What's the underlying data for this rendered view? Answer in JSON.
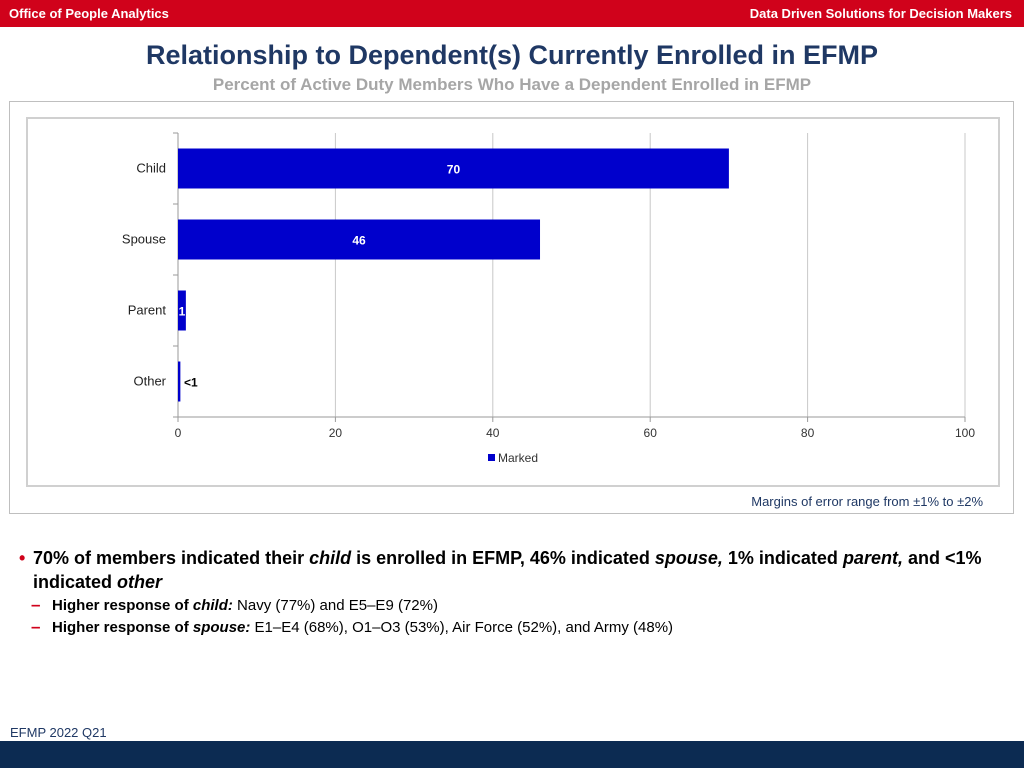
{
  "header": {
    "left_text": "Office of People Analytics",
    "right_text": "Data Driven Solutions for Decision Makers"
  },
  "title": "Relationship to Dependent(s) Currently Enrolled in EFMP",
  "subtitle": "Percent of Active Duty Members Who Have a Dependent Enrolled in EFMP",
  "chart_data": {
    "type": "bar",
    "orientation": "horizontal",
    "categories": [
      "Child",
      "Spouse",
      "Parent",
      "Other"
    ],
    "series": [
      {
        "name": "Marked",
        "values": [
          70,
          46,
          1,
          0.3
        ],
        "labels": [
          "70",
          "46",
          "1",
          "<1"
        ],
        "color": "#0000cc"
      }
    ],
    "xlim": [
      0,
      100
    ],
    "xticks": [
      0,
      20,
      40,
      60,
      80,
      100
    ],
    "xtick_labels": [
      "0",
      "20",
      "40",
      "60",
      "80",
      "100"
    ],
    "grid": true,
    "legend": "bottom"
  },
  "margin_note": "Margins of error range from ±1% to ±2%",
  "bullet": {
    "parts": [
      {
        "text": "70% of members indicated their ",
        "style": "b"
      },
      {
        "text": "child",
        "style": "bi"
      },
      {
        "text": " is enrolled in EFMP, 46% indicated ",
        "style": "b"
      },
      {
        "text": "spouse,",
        "style": "bi"
      },
      {
        "text": " 1% indicated ",
        "style": "b"
      },
      {
        "text": "parent,",
        "style": "bi"
      },
      {
        "text": " and <1% indicated ",
        "style": "b"
      },
      {
        "text": "other",
        "style": "bi"
      }
    ],
    "sub_items": [
      {
        "parts": [
          {
            "text": "Higher response of ",
            "style": "b"
          },
          {
            "text": "child:",
            "style": "bi"
          },
          {
            "text": "  Navy (77%) and E5–E9 (72%)",
            "style": ""
          }
        ]
      },
      {
        "parts": [
          {
            "text": "Higher response of ",
            "style": "b"
          },
          {
            "text": "spouse:",
            "style": "bi"
          },
          {
            "text": "  E1–E4 (68%), O1–O3 (53%), Air Force (52%), and Army (48%)",
            "style": ""
          }
        ]
      }
    ]
  },
  "footnote": "EFMP 2022 Q21",
  "colors": {
    "header_red": "#d0021b",
    "title_navy": "#1f3864",
    "subtitle_gray": "#a6a6a6",
    "bar_blue": "#0000cc",
    "footer_navy": "#0c2b52"
  }
}
